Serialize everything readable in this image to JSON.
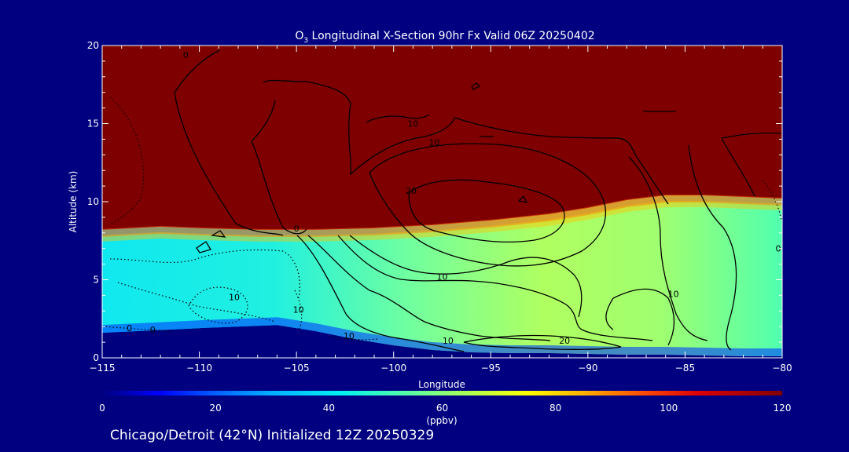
{
  "chart_data": {
    "type": "heatmap",
    "title_prefix": "O",
    "title_subscript": "3",
    "title_rest": " Longitudinal X-Section 90hr  Fx Valid 06Z 20250402",
    "xlabel": "Longitude",
    "ylabel": "Altitude (km)",
    "xlim": [
      -115,
      -80
    ],
    "ylim": [
      0,
      20
    ],
    "xticks": [
      -115,
      -110,
      -105,
      -100,
      -95,
      -90,
      -85,
      -80
    ],
    "xtick_labels": [
      "−115",
      "−110",
      "−105",
      "−100",
      "−95",
      "−90",
      "−85",
      "−80"
    ],
    "yticks": [
      0,
      5,
      10,
      15,
      20
    ],
    "ytick_labels": [
      "0",
      "5",
      "10",
      "15",
      "20"
    ],
    "colorbar": {
      "range": [
        0,
        120
      ],
      "ticks": [
        0,
        20,
        40,
        60,
        80,
        100,
        120
      ],
      "tick_labels": [
        "0",
        "20",
        "40",
        "60",
        "80",
        "100",
        "120"
      ],
      "label": "(ppbv)"
    },
    "color_scale": [
      {
        "value": 0,
        "color": "#00007f"
      },
      {
        "value": 10,
        "color": "#0000ff"
      },
      {
        "value": 20,
        "color": "#0060ff"
      },
      {
        "value": 30,
        "color": "#00b0ff"
      },
      {
        "value": 42,
        "color": "#00f0f0"
      },
      {
        "value": 55,
        "color": "#60ffa0"
      },
      {
        "value": 65,
        "color": "#b0ff50"
      },
      {
        "value": 75,
        "color": "#ffff00"
      },
      {
        "value": 85,
        "color": "#ffb000"
      },
      {
        "value": 95,
        "color": "#ff5000"
      },
      {
        "value": 105,
        "color": "#e00000"
      },
      {
        "value": 120,
        "color": "#7f0000"
      }
    ],
    "terrain_profile": {
      "lon": [
        -115,
        -110,
        -108,
        -106,
        -104,
        -102,
        -100,
        -98,
        -96,
        -94,
        -92,
        -90,
        -88,
        -86,
        -84,
        -82,
        -80
      ],
      "alt": [
        1.6,
        1.9,
        2.0,
        2.1,
        1.7,
        1.2,
        0.8,
        0.5,
        0.35,
        0.3,
        0.3,
        0.25,
        0.2,
        0.2,
        0.15,
        0.1,
        0.1
      ]
    },
    "tropopause_profile": {
      "lon": [
        -115,
        -112,
        -110,
        -107,
        -104,
        -101,
        -98,
        -95,
        -92,
        -90,
        -88,
        -86,
        -84,
        -82,
        -80
      ],
      "alt": [
        8.2,
        8.4,
        8.3,
        8.2,
        8.2,
        8.3,
        8.5,
        8.8,
        9.2,
        9.6,
        10.1,
        10.4,
        10.4,
        10.3,
        10.2
      ]
    },
    "contour_labels": [
      {
        "text": "0",
        "lon": -110.7,
        "alt": 19.2
      },
      {
        "text": "10",
        "lon": -99.0,
        "alt": 14.8
      },
      {
        "text": "10",
        "lon": -97.9,
        "alt": 13.6
      },
      {
        "text": "20",
        "lon": -99.1,
        "alt": 10.5
      },
      {
        "text": "0",
        "lon": -105.0,
        "alt": 8.1
      },
      {
        "text": "10",
        "lon": -97.5,
        "alt": 5.0
      },
      {
        "text": "10",
        "lon": -85.6,
        "alt": 3.9
      },
      {
        "text": "0",
        "lon": -80.2,
        "alt": 6.8
      },
      {
        "text": "0",
        "lon": -113.6,
        "alt": 1.7
      },
      {
        "text": "0",
        "lon": -112.4,
        "alt": 1.6
      },
      {
        "text": "10",
        "lon": -108.2,
        "alt": 3.7
      },
      {
        "text": "10",
        "lon": -104.9,
        "alt": 2.9
      },
      {
        "text": "10",
        "lon": -102.3,
        "alt": 1.2
      },
      {
        "text": "10",
        "lon": -97.2,
        "alt": 0.9
      },
      {
        "text": "20",
        "lon": -91.2,
        "alt": 0.9
      }
    ]
  },
  "footer": {
    "location": "Chicago/Detroit (42°N) Initialized 12Z 20250329"
  }
}
